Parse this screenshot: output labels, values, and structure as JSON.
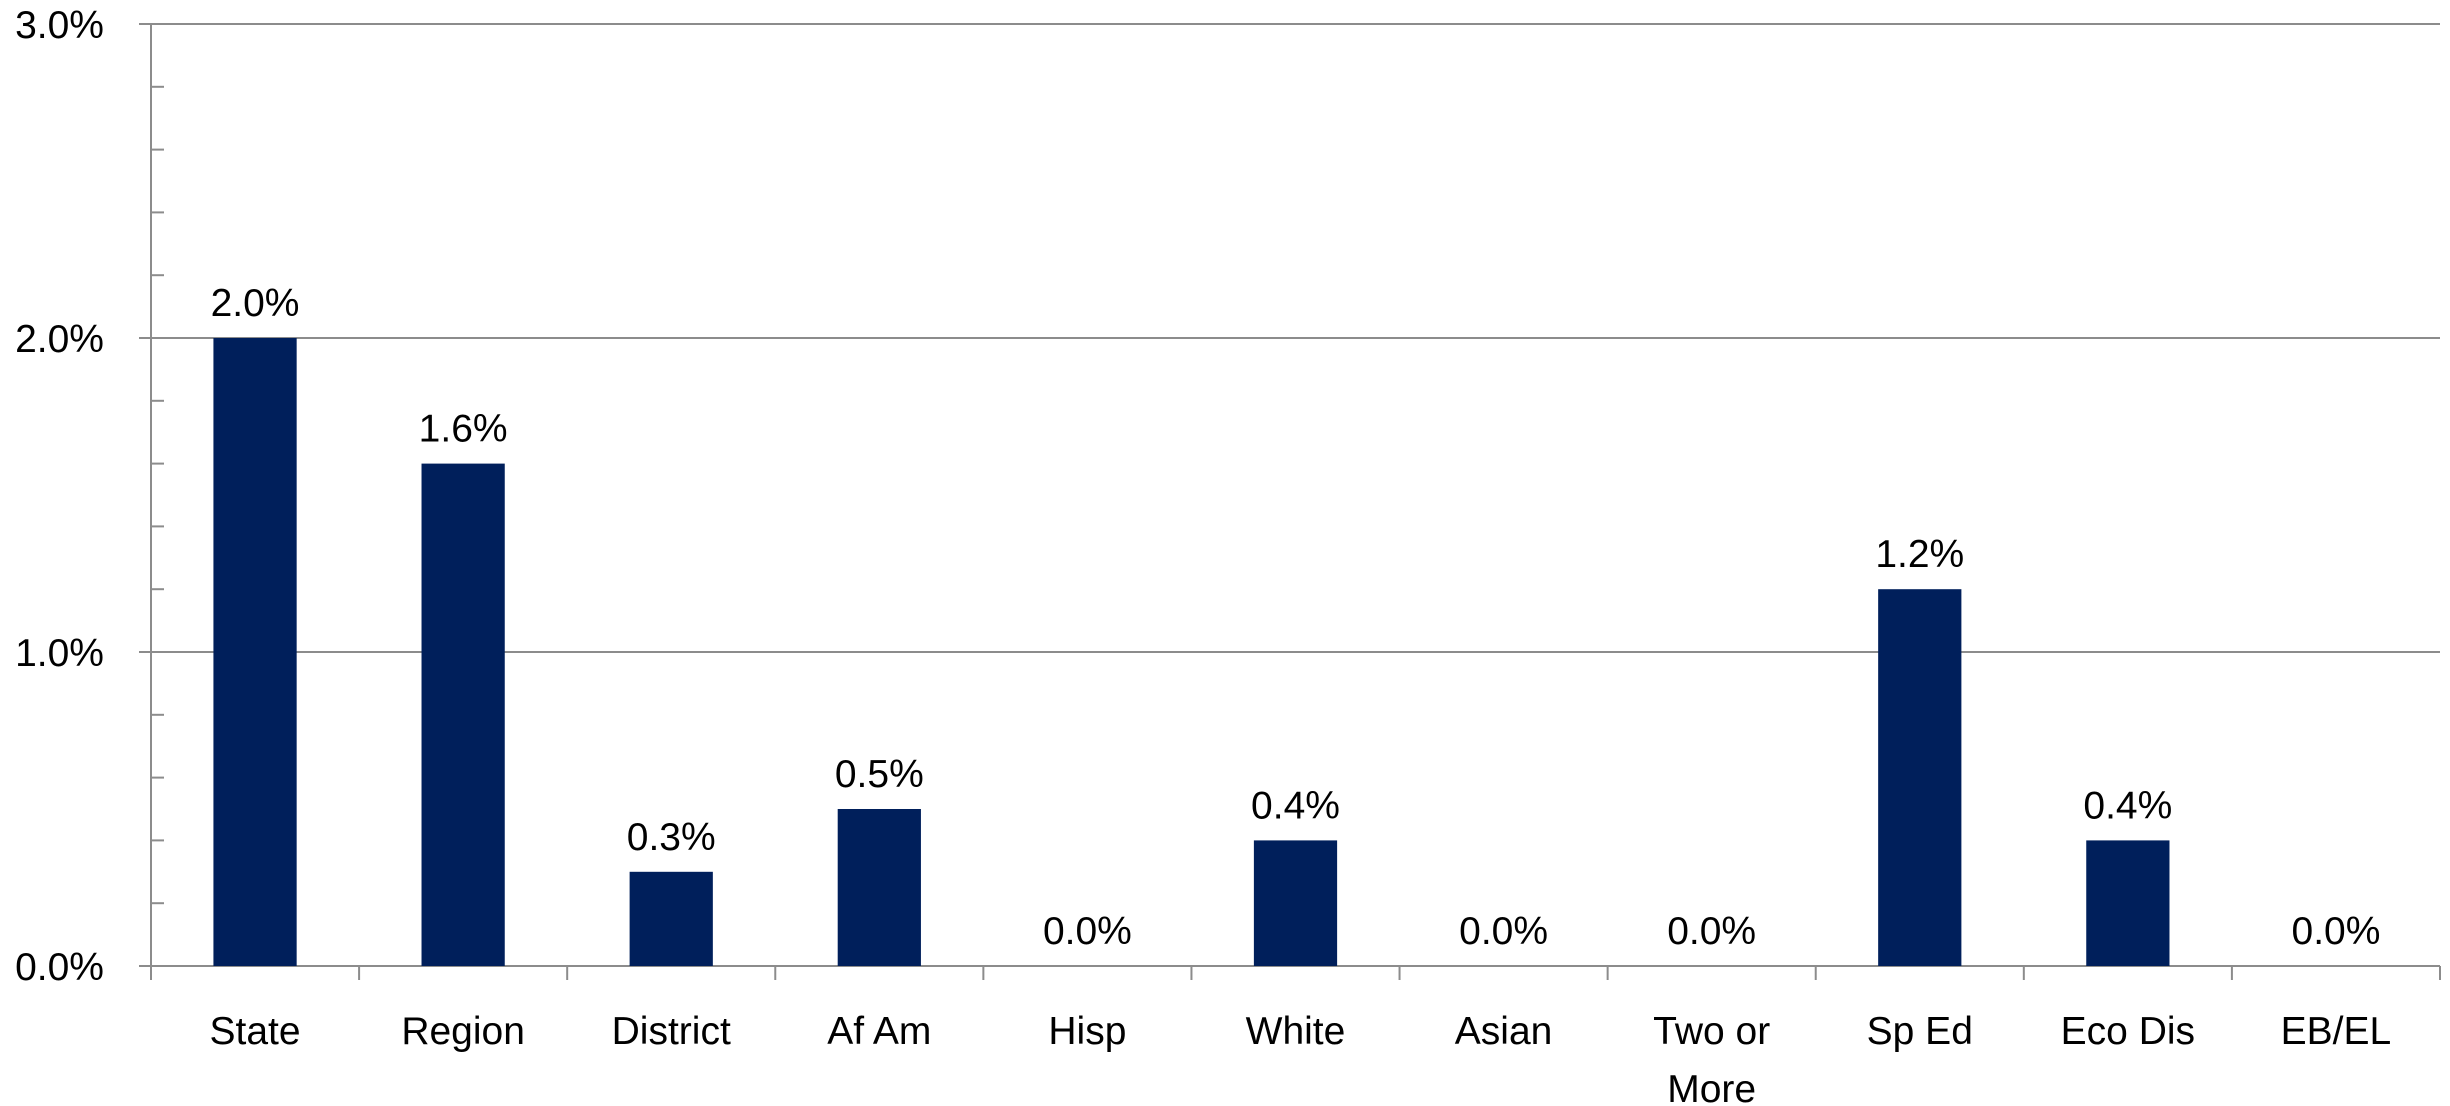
{
  "chart_data": {
    "type": "bar",
    "categories": [
      "State",
      "Region",
      "District",
      "Af Am",
      "Hisp",
      "White",
      "Asian",
      "Two or More",
      "Sp Ed",
      "Eco Dis",
      "EB/EL"
    ],
    "category_lines": [
      [
        "State"
      ],
      [
        "Region"
      ],
      [
        "District"
      ],
      [
        "Af Am"
      ],
      [
        "Hisp"
      ],
      [
        "White"
      ],
      [
        "Asian"
      ],
      [
        "Two or",
        "More"
      ],
      [
        "Sp Ed"
      ],
      [
        "Eco Dis"
      ],
      [
        "EB/EL"
      ]
    ],
    "values": [
      2.0,
      1.6,
      0.3,
      0.5,
      0.0,
      0.4,
      0.0,
      0.0,
      1.2,
      0.4,
      0.0
    ],
    "data_labels": [
      "2.0%",
      "1.6%",
      "0.3%",
      "0.5%",
      "0.0%",
      "0.4%",
      "0.0%",
      "0.0%",
      "1.2%",
      "0.4%",
      "0.0%"
    ],
    "y_ticks": [
      0,
      1,
      2,
      3
    ],
    "y_tick_labels": [
      "0.0%",
      "1.0%",
      "2.0%",
      "3.0%"
    ],
    "ylim": [
      0,
      3
    ],
    "minor_tick_step": 0.2,
    "gridlines": true,
    "legend": "none",
    "bar_color": "#001f5b",
    "grid_color": "#8c8c8c",
    "axis_color": "#8c8c8c"
  }
}
